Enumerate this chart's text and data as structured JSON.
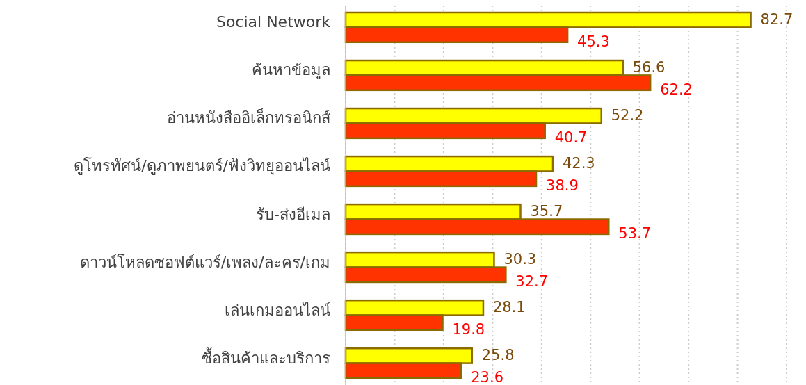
{
  "chart_data": {
    "type": "bar",
    "orientation": "horizontal",
    "categories": [
      "Social Network",
      "ค้นหาข้อมูล",
      "อ่านหนังสืออิเล็กทรอนิกส์",
      "ดูโทรทัศน์/ดูภาพยนตร์/ฟังวิทยุออนไลน์",
      "รับ-ส่งอีเมล",
      "ดาวน์โหลดซอฟต์แวร์/เพลง/ละคร/เกม",
      "เล่นเกมออนไลน์",
      "ซื้อสินค้าและบริการ"
    ],
    "series": [
      {
        "color": "#ffff00",
        "values": [
          82.7,
          56.6,
          52.2,
          42.3,
          35.7,
          30.3,
          28.1,
          25.8
        ]
      },
      {
        "color": "#ff3300",
        "values": [
          45.3,
          62.2,
          40.7,
          38.9,
          53.7,
          32.7,
          19.8,
          23.6
        ]
      }
    ],
    "xlim": [
      0,
      90
    ],
    "xticks": [
      {
        "value": 0,
        "label": null
      },
      {
        "value": 10,
        "label": null
      },
      {
        "value": 20,
        "label": null
      },
      {
        "value": 30,
        "label": null
      },
      {
        "value": 40,
        "label": null
      },
      {
        "value": 50,
        "label": null
      },
      {
        "value": 60,
        "label": null
      },
      {
        "value": 70,
        "label": null
      },
      {
        "value": 80,
        "label": null
      },
      {
        "value": 90,
        "label": null
      }
    ],
    "grid": "x",
    "tick_labels": "y",
    "data_labels": true
  }
}
